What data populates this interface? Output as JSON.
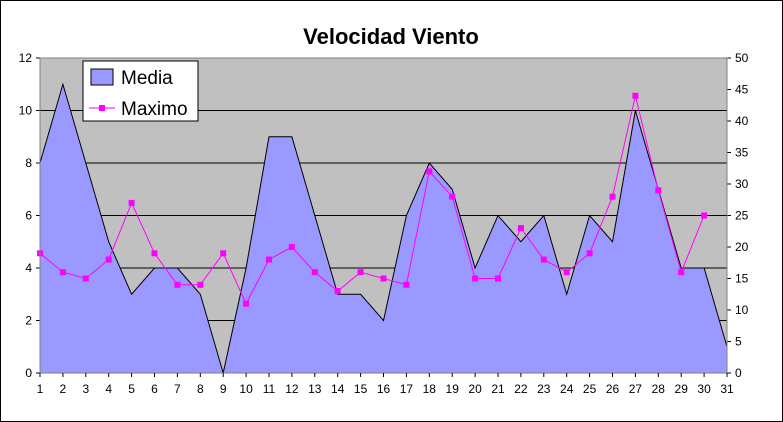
{
  "chart_data": {
    "type": "area",
    "title": "Velocidad Viento",
    "x": [
      1,
      2,
      3,
      4,
      5,
      6,
      7,
      8,
      9,
      10,
      11,
      12,
      13,
      14,
      15,
      16,
      17,
      18,
      19,
      20,
      21,
      22,
      23,
      24,
      25,
      26,
      27,
      28,
      29,
      30,
      31
    ],
    "series": [
      {
        "name": "Media",
        "type": "area",
        "axis": "left",
        "color": "#9999ff",
        "values": [
          8,
          11,
          8,
          5,
          3,
          4,
          4,
          3,
          0,
          4,
          9,
          9,
          6,
          3,
          3,
          2,
          6,
          8,
          7,
          4,
          6,
          5,
          6,
          3,
          6,
          5,
          10,
          7,
          4,
          4,
          1
        ]
      },
      {
        "name": "Maximo",
        "type": "line",
        "axis": "right",
        "color": "#ff00ff",
        "values": [
          19,
          16,
          15,
          18,
          27,
          19,
          14,
          14,
          19,
          11,
          18,
          20,
          16,
          13,
          16,
          15,
          14,
          32,
          28,
          15,
          15,
          23,
          18,
          16,
          19,
          28,
          44,
          29,
          16,
          25,
          null
        ]
      }
    ],
    "y_left": {
      "min": 0,
      "max": 12,
      "step": 2
    },
    "y_right": {
      "min": 0,
      "max": 50,
      "step": 5
    },
    "plot_background": "#c0c0c0",
    "grid": true,
    "legend_position": "top-left"
  }
}
